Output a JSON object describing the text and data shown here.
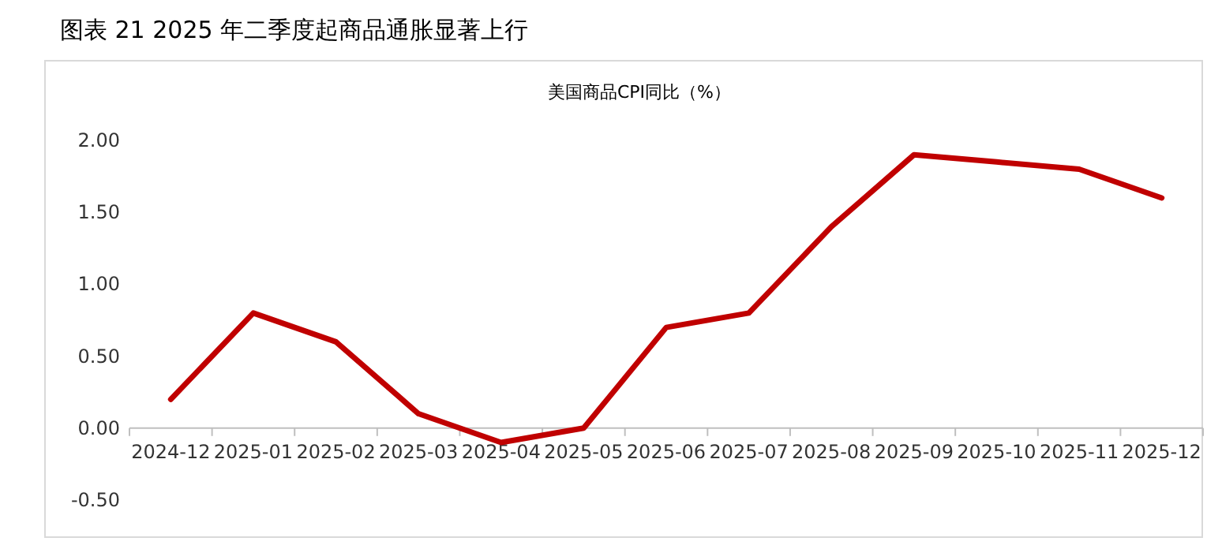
{
  "chart_data": {
    "type": "line",
    "title": "图表 21  2025 年二季度起商品通胀显著上行",
    "subtitle": "美国商品CPI同比（%）",
    "categories": [
      "2024-12",
      "2025-01",
      "2025-02",
      "2025-03",
      "2025-04",
      "2025-05",
      "2025-06",
      "2025-07",
      "2025-08",
      "2025-09",
      "2025-10",
      "2025-11",
      "2025-12"
    ],
    "series": [
      {
        "color": "#c00000",
        "values": [
          0.2,
          0.8,
          0.6,
          0.1,
          -0.1,
          0.0,
          0.7,
          0.8,
          1.4,
          1.9,
          1.85,
          1.8,
          1.6
        ]
      }
    ],
    "ylim": [
      -0.5,
      2.0
    ],
    "yticks": [
      {
        "value": -0.5,
        "label": "-0.50"
      },
      {
        "value": 0,
        "label": "0.00"
      },
      {
        "value": 0.5,
        "label": "0.50"
      },
      {
        "value": 1,
        "label": "1.00"
      },
      {
        "value": 1.5,
        "label": "1.50"
      },
      {
        "value": 2,
        "label": "2.00"
      }
    ],
    "grid": false,
    "marker": "none",
    "line_style": "solid"
  }
}
